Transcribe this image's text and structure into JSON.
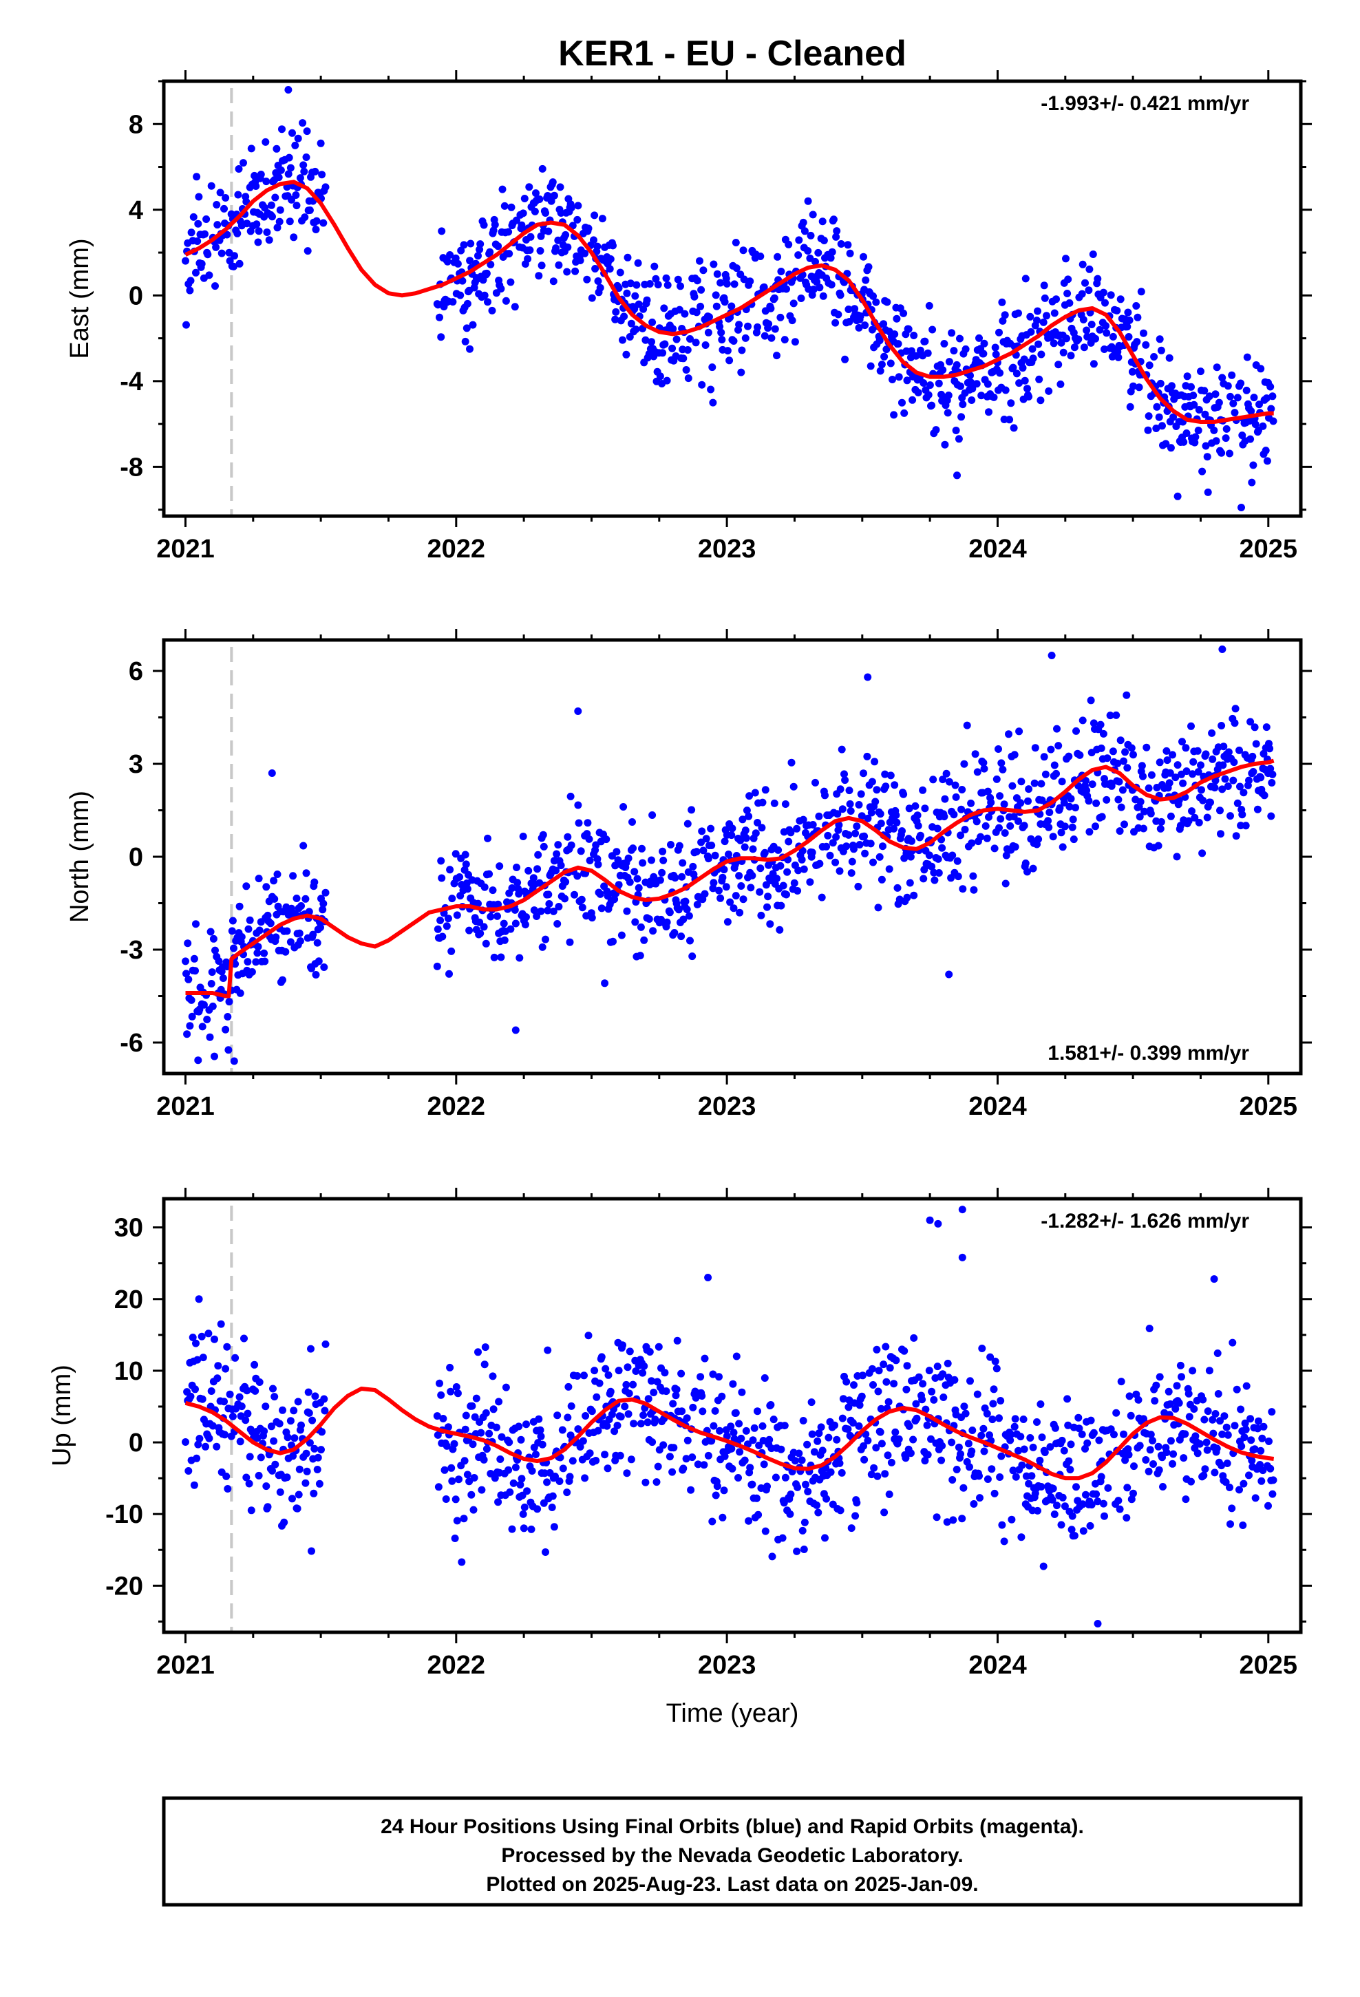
{
  "title": "KER1  - EU - Cleaned",
  "footer": {
    "lines": [
      "24 Hour Positions Using Final Orbits (blue) and Rapid Orbits (magenta).",
      "Processed by the Nevada Geodetic Laboratory.",
      "Plotted on 2025-Aug-23. Last data on 2025-Jan-09."
    ]
  },
  "colors": {
    "final_orbits": "#0000ff",
    "model": "#ff0000",
    "event_line": "#c8c8c8",
    "frame": "#000000"
  },
  "chart_data": [
    {
      "type": "scatter",
      "component": "east",
      "ylabel": "East (mm)",
      "xlabel": "",
      "xlim": [
        2020.92,
        2025.12
      ],
      "ylim": [
        -10.3,
        10.0
      ],
      "xticks": [
        2021,
        2022,
        2023,
        2024,
        2025
      ],
      "yticks": [
        -8,
        -4,
        0,
        4,
        8
      ],
      "rate_text": "-1.993+/- 0.421 mm/yr",
      "rate_position": "top-right",
      "event_line_x": 2021.17,
      "data_gap": [
        2021.52,
        2021.93
      ],
      "last_x": 2025.02,
      "model_curve": {
        "x": [
          2021.0,
          2021.05,
          2021.1,
          2021.15,
          2021.2,
          2021.25,
          2021.3,
          2021.35,
          2021.4,
          2021.45,
          2021.5,
          2021.55,
          2021.6,
          2021.65,
          2021.7,
          2021.75,
          2021.8,
          2021.85,
          2021.9,
          2021.95,
          2022.0,
          2022.05,
          2022.1,
          2022.15,
          2022.2,
          2022.25,
          2022.3,
          2022.35,
          2022.4,
          2022.45,
          2022.5,
          2022.55,
          2022.6,
          2022.65,
          2022.7,
          2022.75,
          2022.8,
          2022.85,
          2022.9,
          2022.95,
          2023.0,
          2023.05,
          2023.1,
          2023.15,
          2023.2,
          2023.25,
          2023.3,
          2023.35,
          2023.4,
          2023.45,
          2023.5,
          2023.55,
          2023.6,
          2023.65,
          2023.7,
          2023.75,
          2023.8,
          2023.85,
          2023.9,
          2023.95,
          2024.0,
          2024.05,
          2024.1,
          2024.15,
          2024.2,
          2024.25,
          2024.3,
          2024.35,
          2024.4,
          2024.45,
          2024.5,
          2024.55,
          2024.6,
          2024.65,
          2024.7,
          2024.75,
          2024.8,
          2024.85,
          2024.9,
          2024.95,
          2025.0,
          2025.02
        ],
        "y": [
          1.9,
          2.2,
          2.6,
          3.1,
          3.7,
          4.4,
          4.9,
          5.2,
          5.3,
          5.0,
          4.3,
          3.3,
          2.2,
          1.2,
          0.5,
          0.1,
          0.0,
          0.1,
          0.3,
          0.5,
          0.8,
          1.1,
          1.5,
          1.9,
          2.4,
          2.9,
          3.3,
          3.4,
          3.3,
          2.8,
          2.0,
          1.0,
          -0.1,
          -0.9,
          -1.4,
          -1.7,
          -1.8,
          -1.7,
          -1.5,
          -1.2,
          -0.9,
          -0.6,
          -0.2,
          0.2,
          0.6,
          1.0,
          1.3,
          1.4,
          1.2,
          0.7,
          -0.2,
          -1.3,
          -2.3,
          -3.1,
          -3.6,
          -3.8,
          -3.8,
          -3.7,
          -3.5,
          -3.3,
          -3.0,
          -2.7,
          -2.3,
          -1.9,
          -1.4,
          -1.0,
          -0.7,
          -0.6,
          -0.9,
          -1.7,
          -2.8,
          -3.9,
          -4.8,
          -5.4,
          -5.8,
          -5.9,
          -5.9,
          -5.8,
          -5.7,
          -5.6,
          -5.5,
          -5.5
        ]
      },
      "observations": {
        "segments": [
          [
            2021.0,
            2021.52
          ],
          [
            2021.93,
            2025.02
          ]
        ],
        "scatter_sd": 1.3,
        "outliers": [
          {
            "x": 2021.38,
            "y": 9.6
          },
          {
            "x": 2023.85,
            "y": -8.4
          },
          {
            "x": 2024.9,
            "y": -9.9
          },
          {
            "x": 2022.05,
            "y": -2.5
          },
          {
            "x": 2021.5,
            "y": 7.1
          },
          {
            "x": 2023.3,
            "y": 4.4
          }
        ]
      }
    },
    {
      "type": "scatter",
      "component": "north",
      "ylabel": "North (mm)",
      "xlabel": "",
      "xlim": [
        2020.92,
        2025.12
      ],
      "ylim": [
        -7.0,
        7.0
      ],
      "xticks": [
        2021,
        2022,
        2023,
        2024,
        2025
      ],
      "yticks": [
        -6,
        -3,
        0,
        3,
        6
      ],
      "rate_text": "1.581+/- 0.399 mm/yr",
      "rate_position": "bottom-right",
      "event_line_x": 2021.17,
      "data_gap": [
        2021.52,
        2021.93
      ],
      "last_x": 2025.02,
      "model_curve": {
        "x": [
          2021.0,
          2021.05,
          2021.1,
          2021.15,
          2021.16,
          2021.17,
          2021.2,
          2021.25,
          2021.3,
          2021.35,
          2021.4,
          2021.45,
          2021.5,
          2021.55,
          2021.6,
          2021.65,
          2021.7,
          2021.75,
          2021.8,
          2021.85,
          2021.9,
          2021.95,
          2022.0,
          2022.05,
          2022.1,
          2022.15,
          2022.2,
          2022.25,
          2022.3,
          2022.35,
          2022.4,
          2022.45,
          2022.5,
          2022.55,
          2022.6,
          2022.65,
          2022.7,
          2022.75,
          2022.8,
          2022.85,
          2022.9,
          2022.95,
          2023.0,
          2023.05,
          2023.1,
          2023.15,
          2023.2,
          2023.25,
          2023.3,
          2023.35,
          2023.4,
          2023.45,
          2023.5,
          2023.55,
          2023.6,
          2023.65,
          2023.7,
          2023.75,
          2023.8,
          2023.85,
          2023.9,
          2023.95,
          2024.0,
          2024.05,
          2024.1,
          2024.15,
          2024.2,
          2024.25,
          2024.3,
          2024.35,
          2024.4,
          2024.45,
          2024.5,
          2024.55,
          2024.6,
          2024.65,
          2024.7,
          2024.75,
          2024.8,
          2024.85,
          2024.9,
          2024.95,
          2025.0,
          2025.02
        ],
        "y": [
          -4.4,
          -4.4,
          -4.4,
          -4.5,
          -4.5,
          -3.3,
          -3.1,
          -2.8,
          -2.5,
          -2.2,
          -2.0,
          -1.9,
          -2.0,
          -2.3,
          -2.6,
          -2.8,
          -2.9,
          -2.7,
          -2.4,
          -2.1,
          -1.8,
          -1.7,
          -1.6,
          -1.6,
          -1.7,
          -1.7,
          -1.6,
          -1.4,
          -1.1,
          -0.8,
          -0.5,
          -0.35,
          -0.45,
          -0.75,
          -1.1,
          -1.3,
          -1.4,
          -1.35,
          -1.2,
          -1.0,
          -0.7,
          -0.4,
          -0.15,
          -0.05,
          -0.05,
          -0.1,
          -0.05,
          0.2,
          0.5,
          0.85,
          1.15,
          1.25,
          1.15,
          0.85,
          0.5,
          0.3,
          0.25,
          0.45,
          0.8,
          1.1,
          1.35,
          1.5,
          1.55,
          1.5,
          1.45,
          1.5,
          1.75,
          2.1,
          2.5,
          2.8,
          2.9,
          2.7,
          2.3,
          2.0,
          1.85,
          1.9,
          2.1,
          2.4,
          2.6,
          2.75,
          2.9,
          3.0,
          3.05,
          3.1
        ]
      },
      "observations": {
        "segments": [
          [
            2021.0,
            2021.52
          ],
          [
            2021.93,
            2025.02
          ]
        ],
        "scatter_sd": 1.0,
        "outliers": [
          {
            "x": 2021.18,
            "y": -6.6
          },
          {
            "x": 2021.32,
            "y": 2.7
          },
          {
            "x": 2022.45,
            "y": 4.7
          },
          {
            "x": 2023.52,
            "y": 5.8
          },
          {
            "x": 2024.83,
            "y": 6.7
          },
          {
            "x": 2024.2,
            "y": 6.5
          },
          {
            "x": 2023.82,
            "y": -3.8
          },
          {
            "x": 2022.22,
            "y": -5.6
          }
        ]
      }
    },
    {
      "type": "scatter",
      "component": "up",
      "ylabel": "Up (mm)",
      "xlabel": "Time (year)",
      "xlim": [
        2020.92,
        2025.12
      ],
      "ylim": [
        -26.5,
        34.0
      ],
      "xticks": [
        2021,
        2022,
        2023,
        2024,
        2025
      ],
      "yticks": [
        -20,
        -10,
        0,
        10,
        20,
        30
      ],
      "rate_text": "-1.282+/- 1.626 mm/yr",
      "rate_position": "top-right",
      "event_line_x": 2021.17,
      "data_gap": [
        2021.52,
        2021.93
      ],
      "last_x": 2025.02,
      "model_curve": {
        "x": [
          2021.0,
          2021.05,
          2021.1,
          2021.15,
          2021.2,
          2021.25,
          2021.3,
          2021.35,
          2021.4,
          2021.45,
          2021.5,
          2021.55,
          2021.6,
          2021.65,
          2021.7,
          2021.75,
          2021.8,
          2021.85,
          2021.9,
          2021.95,
          2022.0,
          2022.05,
          2022.1,
          2022.15,
          2022.2,
          2022.25,
          2022.3,
          2022.35,
          2022.4,
          2022.45,
          2022.5,
          2022.55,
          2022.6,
          2022.65,
          2022.7,
          2022.75,
          2022.8,
          2022.85,
          2022.9,
          2022.95,
          2023.0,
          2023.05,
          2023.1,
          2023.15,
          2023.2,
          2023.25,
          2023.3,
          2023.35,
          2023.4,
          2023.45,
          2023.5,
          2023.55,
          2023.6,
          2023.65,
          2023.7,
          2023.75,
          2023.8,
          2023.85,
          2023.9,
          2023.95,
          2024.0,
          2024.05,
          2024.1,
          2024.15,
          2024.2,
          2024.25,
          2024.3,
          2024.35,
          2024.4,
          2024.45,
          2024.5,
          2024.55,
          2024.6,
          2024.65,
          2024.7,
          2024.75,
          2024.8,
          2024.85,
          2024.9,
          2024.95,
          2025.0,
          2025.02
        ],
        "y": [
          5.5,
          5.0,
          4.2,
          3.0,
          1.5,
          0.0,
          -1.0,
          -1.5,
          -1.0,
          0.5,
          2.5,
          4.8,
          6.5,
          7.5,
          7.3,
          6.0,
          4.5,
          3.2,
          2.2,
          1.6,
          1.2,
          0.8,
          0.3,
          -0.5,
          -1.5,
          -2.3,
          -2.6,
          -2.2,
          -1.0,
          0.8,
          2.8,
          4.5,
          5.8,
          6.0,
          5.4,
          4.3,
          3.2,
          2.2,
          1.4,
          0.8,
          0.2,
          -0.5,
          -1.3,
          -2.2,
          -3.0,
          -3.6,
          -3.7,
          -3.2,
          -2.0,
          -0.3,
          1.6,
          3.2,
          4.3,
          4.8,
          4.5,
          3.6,
          2.5,
          1.5,
          0.7,
          0.0,
          -0.8,
          -1.6,
          -2.4,
          -3.4,
          -4.4,
          -5.0,
          -5.0,
          -4.3,
          -2.8,
          -0.8,
          1.2,
          2.7,
          3.5,
          3.4,
          2.6,
          1.5,
          0.4,
          -0.6,
          -1.4,
          -1.9,
          -2.2,
          -2.3
        ]
      },
      "observations": {
        "segments": [
          [
            2021.0,
            2021.52
          ],
          [
            2021.93,
            2025.02
          ]
        ],
        "scatter_sd": 5.2,
        "outliers": [
          {
            "x": 2023.75,
            "y": 31.0
          },
          {
            "x": 2023.78,
            "y": 30.5
          },
          {
            "x": 2023.87,
            "y": 32.5
          },
          {
            "x": 2023.87,
            "y": 25.8
          },
          {
            "x": 2024.37,
            "y": -25.3
          },
          {
            "x": 2022.93,
            "y": 23.0
          },
          {
            "x": 2024.8,
            "y": 22.8
          },
          {
            "x": 2021.05,
            "y": 20.0
          }
        ]
      }
    }
  ]
}
